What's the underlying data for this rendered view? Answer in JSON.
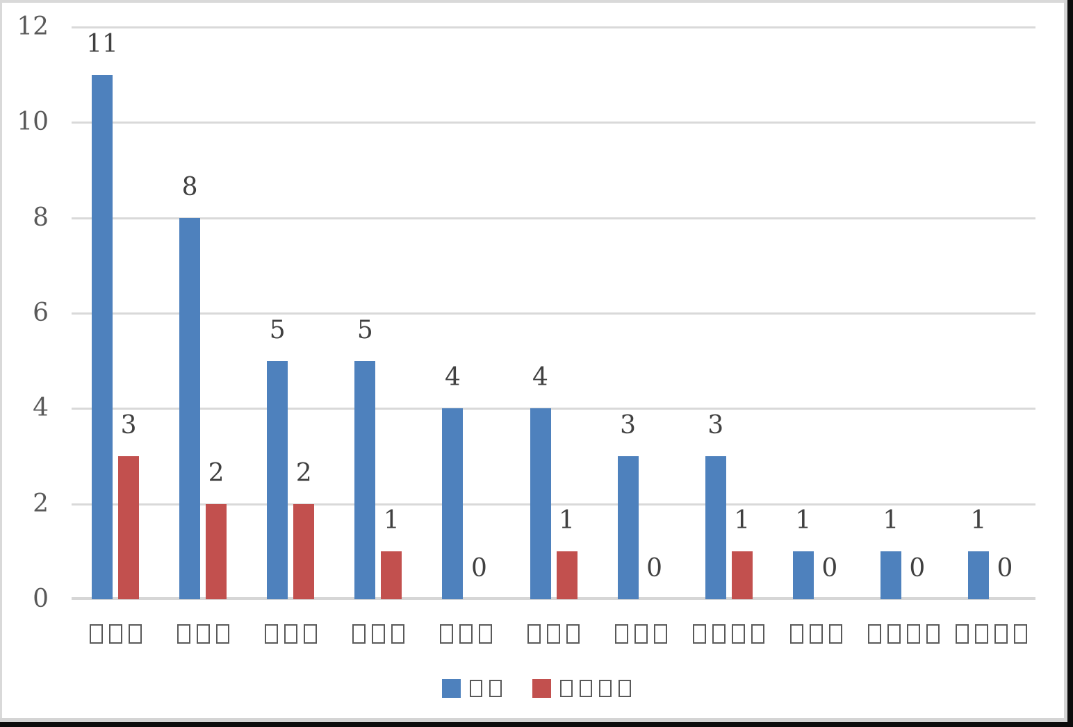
{
  "chart_data": {
    "type": "bar",
    "title": "",
    "xlabel": "",
    "ylabel": "",
    "categories": [
      "□□□",
      "□□□",
      "□□□",
      "□□□",
      "□□□",
      "□□□",
      "□□□",
      "□□□□",
      "□□□",
      "□□□□",
      "□□□□"
    ],
    "series": [
      {
        "name": "□□",
        "color": "#4E81BD",
        "values": [
          11,
          8,
          5,
          5,
          4,
          4,
          3,
          3,
          1,
          1,
          1
        ]
      },
      {
        "name": "□□□□",
        "color": "#C2504E",
        "values": [
          3,
          2,
          2,
          1,
          0,
          1,
          0,
          1,
          0,
          0,
          0
        ]
      }
    ],
    "ylim": [
      0,
      12
    ],
    "yticks": [
      0,
      2,
      4,
      6,
      8,
      10,
      12
    ],
    "grid": true,
    "data_labels": true,
    "legend_position": "bottom"
  },
  "colors": {
    "axis_text": "#595959",
    "data_label_text": "#404040",
    "gridline": "#D9D9D9",
    "baseline": "#D6D6D6",
    "tofu_stroke": "#595959",
    "background": "#FFFFFF",
    "frame_black": "#0C0C0C",
    "frame_gray": "#D9D9D9"
  }
}
